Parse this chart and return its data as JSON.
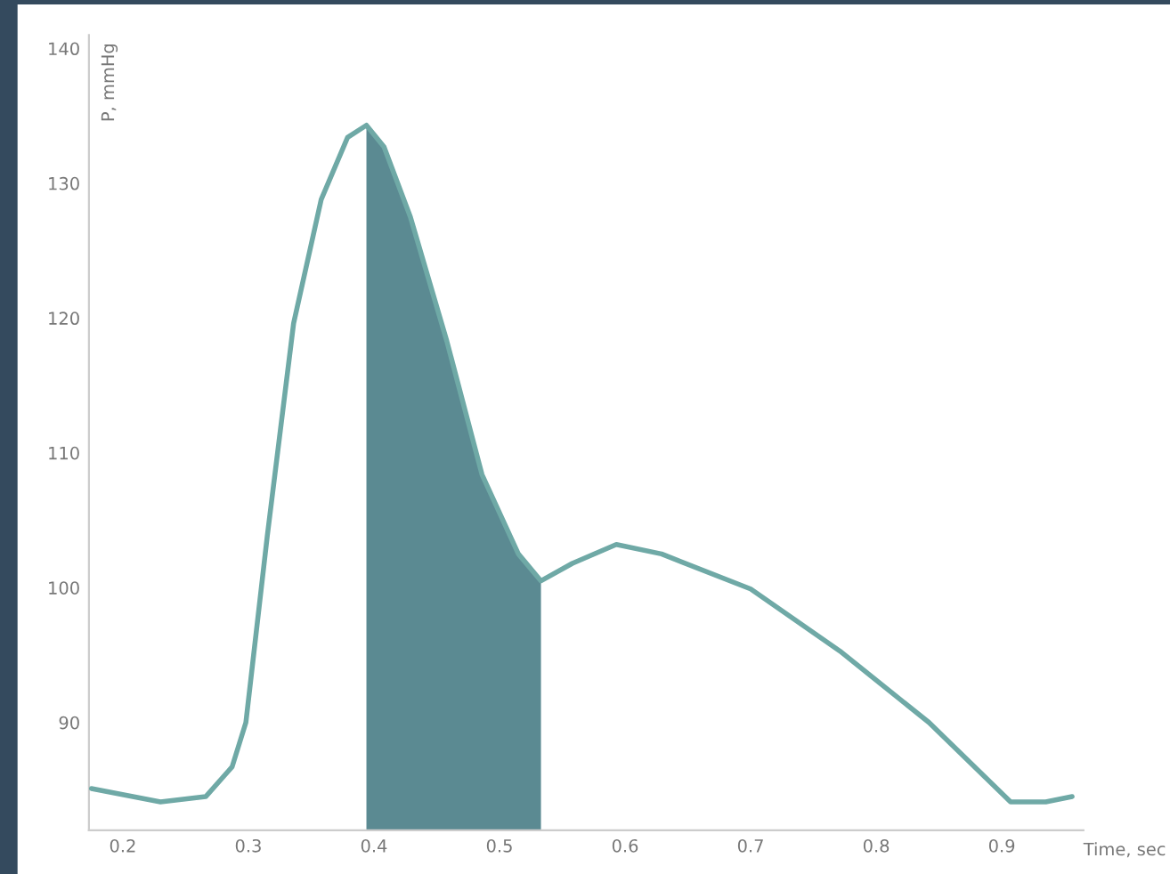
{
  "chart_data": {
    "type": "line",
    "xlabel": "Time, sec",
    "ylabel": "P, mmHg",
    "xlim": [
      0.173,
      0.965
    ],
    "ylim": [
      82,
      141
    ],
    "xticks": [
      0.2,
      0.3,
      0.4,
      0.5,
      0.6,
      0.7,
      0.8,
      0.9
    ],
    "yticks": [
      90,
      100,
      110,
      120,
      130,
      140
    ],
    "grid": false,
    "legend": false,
    "series": [
      {
        "type": "area",
        "color": "#5b8a92",
        "x": [
          0.394,
          0.408,
          0.429,
          0.458,
          0.486,
          0.515,
          0.533
        ],
        "values": [
          134.3,
          132.7,
          127.5,
          118.3,
          108.4,
          102.5,
          100.5
        ]
      },
      {
        "color": "#6fa9a6",
        "x": [
          0.175,
          0.23,
          0.266,
          0.287,
          0.298,
          0.315,
          0.336,
          0.358,
          0.379,
          0.394,
          0.408,
          0.429,
          0.458,
          0.486,
          0.515,
          0.533,
          0.558,
          0.593,
          0.629,
          0.7,
          0.771,
          0.842,
          0.907,
          0.935,
          0.956
        ],
        "values": [
          85.1,
          84.1,
          84.5,
          86.7,
          90,
          103.8,
          119.6,
          128.8,
          133.4,
          134.3,
          132.7,
          127.5,
          118.3,
          108.4,
          102.5,
          100.5,
          101.8,
          103.2,
          102.5,
          99.9,
          95.3,
          90,
          84.1,
          84.1,
          84.5
        ]
      }
    ]
  }
}
